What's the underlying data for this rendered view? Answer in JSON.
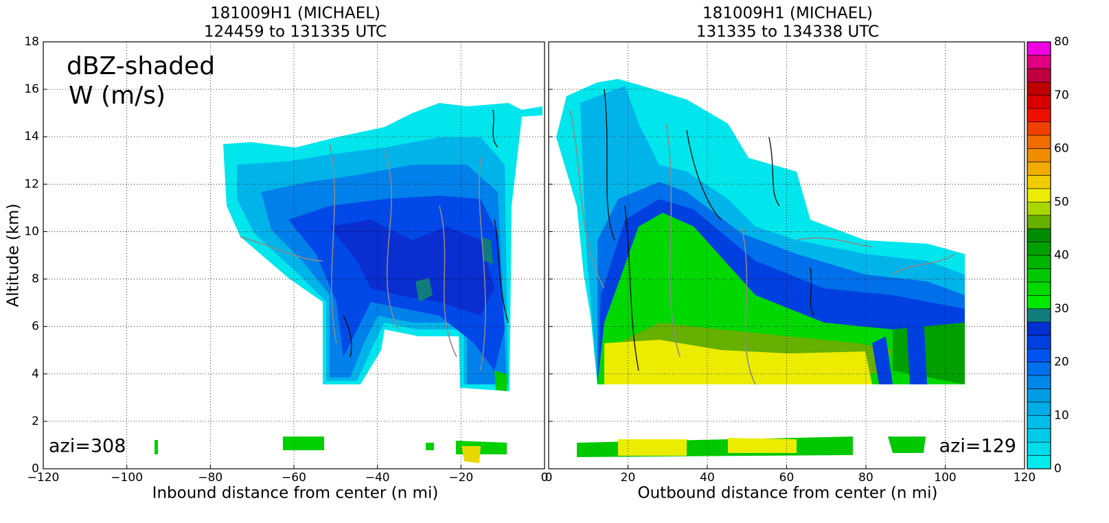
{
  "chart_data": [
    {
      "type": "cross-section",
      "title": "181009H1 (MICHAEL)",
      "subtitle": "124459 to 131335 UTC",
      "xlabel": "Inbound distance from center (n mi)",
      "ylabel": "Altitude (km)",
      "annotations": [
        "dBZ-shaded",
        "W (m/s)",
        "azi=308"
      ],
      "xlim": [
        -120,
        0
      ],
      "xticks": [
        {
          "value": -120,
          "label": "−120"
        },
        {
          "value": -100,
          "label": "−100"
        },
        {
          "value": -80,
          "label": "−80"
        },
        {
          "value": -60,
          "label": "−60"
        },
        {
          "value": -40,
          "label": "−40"
        },
        {
          "value": -20,
          "label": "−20"
        },
        0
      ],
      "ylim": [
        0,
        18
      ],
      "yticks": [
        0,
        2,
        4,
        6,
        8,
        10,
        12,
        14,
        16,
        18
      ],
      "grid": true
    },
    {
      "type": "cross-section",
      "title": "181009H1 (MICHAEL)",
      "subtitle": "131335 to 134338 UTC",
      "xlabel": "Outbound distance from center (n mi)",
      "annotations": [
        "azi=129"
      ],
      "xlim": [
        0,
        120
      ],
      "xticks": [
        0,
        20,
        40,
        60,
        80,
        100,
        120
      ],
      "ylim": [
        0,
        18
      ],
      "yticks": [
        0,
        2,
        4,
        6,
        8,
        10,
        12,
        14,
        16,
        18
      ],
      "grid": true
    },
    {
      "type": "colorbar",
      "clim": [
        0,
        80
      ],
      "cticks": [
        0,
        10,
        20,
        30,
        40,
        50,
        60,
        70,
        80
      ],
      "colors": [
        "#00ecec",
        "#00dcec",
        "#00ccea",
        "#00bce8",
        "#00ace6",
        "#009ce6",
        "#0088e8",
        "#0070ec",
        "#0054f0",
        "#0040e0",
        "#0030d0",
        "#107c7c",
        "#00e800",
        "#00d800",
        "#00c800",
        "#00b400",
        "#00a000",
        "#008c00",
        "#66b000",
        "#a8d800",
        "#ecec00",
        "#f0cc00",
        "#f0ac00",
        "#f08c00",
        "#f06c00",
        "#f04000",
        "#ee1000",
        "#d80000",
        "#c00000",
        "#c00040",
        "#e00080",
        "#f000e0"
      ]
    }
  ]
}
